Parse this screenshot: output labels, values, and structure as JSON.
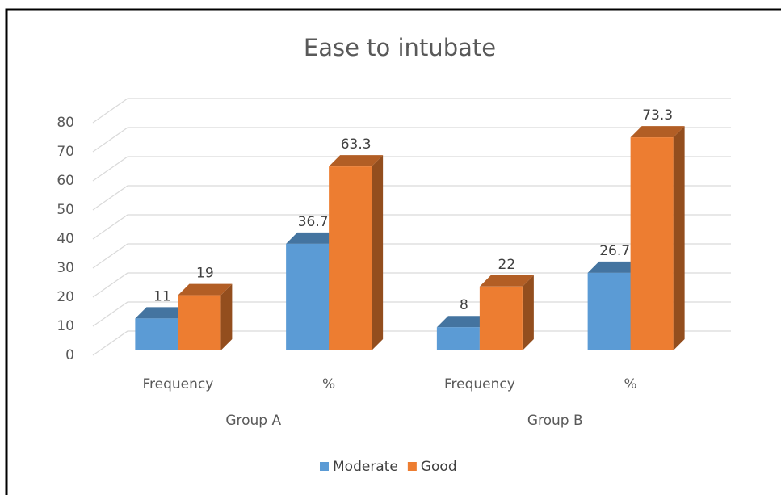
{
  "chart_data": {
    "type": "bar3d",
    "title": "Ease to intubate",
    "categories": [
      "Frequency",
      "%",
      "Frequency",
      "%"
    ],
    "groups": [
      "Group A",
      "Group B"
    ],
    "series": [
      {
        "name": "Moderate",
        "color": "#5b9bd5",
        "values": [
          11,
          36.7,
          8,
          26.7
        ]
      },
      {
        "name": "Good",
        "color": "#ed7d31",
        "values": [
          19,
          63.3,
          22,
          73.3
        ]
      }
    ],
    "ylim": [
      0,
      80
    ],
    "yticks": [
      0,
      10,
      20,
      30,
      40,
      50,
      60,
      70,
      80
    ],
    "grid": true,
    "legend": "bottom"
  }
}
